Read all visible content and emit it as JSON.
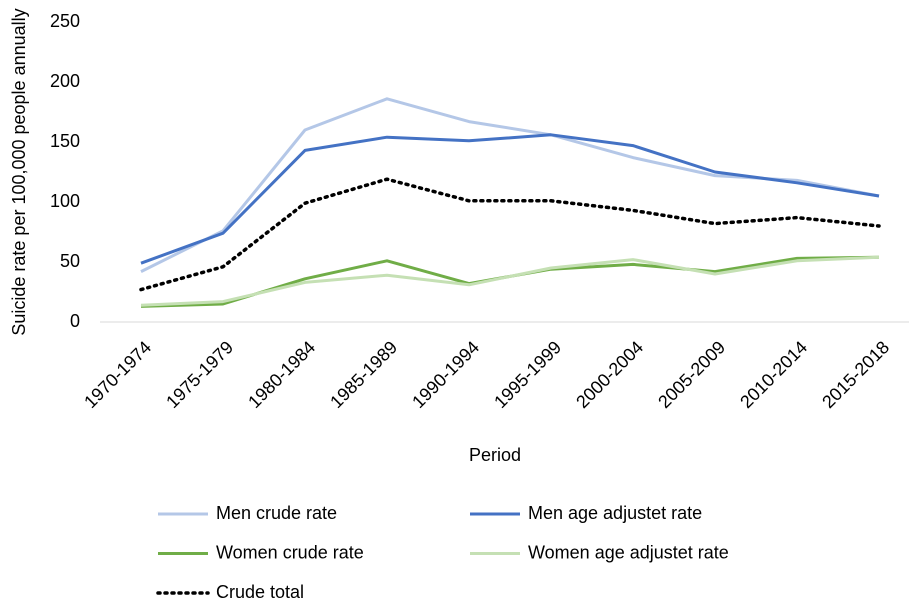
{
  "chart_data": {
    "type": "line",
    "x_label": "Period",
    "y_label": "Suicide rate per 100,000 people annually",
    "categories": [
      "1970-1974",
      "1975-1979",
      "1980-1984",
      "1985-1989",
      "1990-1994",
      "1995-1999",
      "2000-2004",
      "2005-2009",
      "2010-2014",
      "2015-2018"
    ],
    "series": [
      {
        "name": "Men crude rate",
        "color": "#b4c7e7",
        "dash": "solid",
        "values": [
          42,
          76,
          160,
          186,
          167,
          156,
          137,
          122,
          118,
          105
        ]
      },
      {
        "name": "Men age adjustet rate",
        "color": "#4472c4",
        "dash": "solid",
        "values": [
          49,
          74,
          143,
          154,
          151,
          156,
          147,
          125,
          116,
          105
        ]
      },
      {
        "name": "Women crude rate",
        "color": "#70ad47",
        "dash": "solid",
        "values": [
          13,
          15,
          36,
          51,
          32,
          44,
          48,
          42,
          53,
          54
        ]
      },
      {
        "name": "Women age adjustet rate",
        "color": "#c5e0b4",
        "dash": "solid",
        "values": [
          14,
          17,
          33,
          39,
          31,
          45,
          52,
          40,
          51,
          54
        ]
      },
      {
        "name": "Crude total",
        "color": "#000000",
        "dash": "dotted",
        "values": [
          27,
          46,
          99,
          119,
          101,
          101,
          93,
          82,
          87,
          80
        ]
      }
    ],
    "ylim": [
      0,
      250
    ],
    "yticks": [
      0,
      50,
      100,
      150,
      200,
      250
    ],
    "grid": false
  }
}
